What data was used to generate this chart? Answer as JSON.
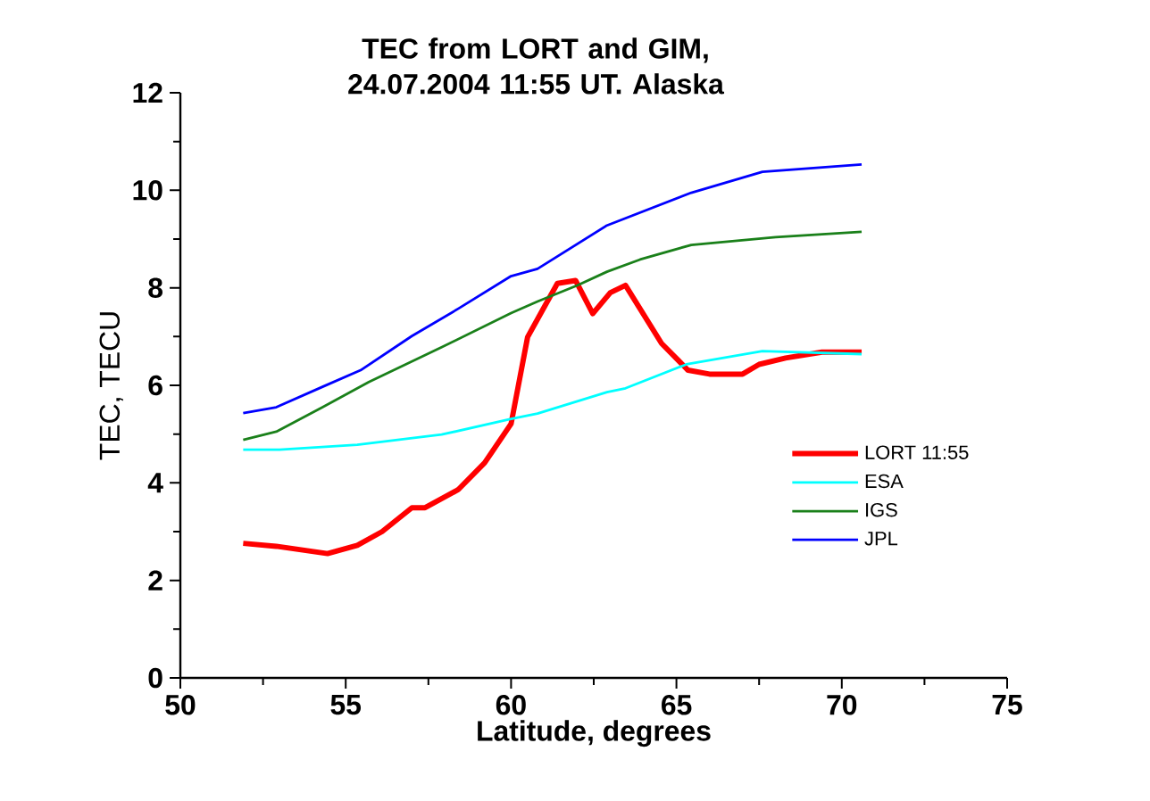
{
  "chart_data": {
    "type": "line",
    "title": "TEC from LORT and GIM, 24.07.2004 11:55 UT. Alaska",
    "xlabel": "Latitude, degrees",
    "ylabel": "TEC, TECU",
    "xlim": [
      50,
      75
    ],
    "xticks": [
      50,
      55,
      60,
      65,
      70,
      75
    ],
    "ylim": [
      0,
      12
    ],
    "yticks": [
      0,
      2,
      4,
      6,
      8,
      10,
      12
    ],
    "legend": "right",
    "series": [
      {
        "name": "LORT 11:55",
        "color": "#ff0000",
        "x": [
          51.9,
          52.9,
          54.45,
          55.35,
          56.1,
          57.0,
          57.4,
          58.4,
          59.2,
          60.0,
          60.5,
          60.95,
          61.4,
          61.95,
          62.47,
          63.0,
          63.46,
          64.55,
          65.35,
          66.0,
          67.0,
          67.5,
          68.3,
          69.4,
          70.6
        ],
        "values": [
          2.76,
          2.7,
          2.55,
          2.72,
          3.0,
          3.49,
          3.49,
          3.86,
          4.41,
          5.21,
          6.99,
          7.54,
          8.09,
          8.15,
          7.47,
          7.9,
          8.05,
          6.86,
          6.31,
          6.23,
          6.23,
          6.43,
          6.56,
          6.68,
          6.68
        ]
      },
      {
        "name": "ESA",
        "color": "#00ffff",
        "x": [
          51.9,
          53.0,
          55.35,
          57.9,
          60.0,
          60.8,
          62.9,
          63.46,
          65.3,
          67.6,
          70.6
        ],
        "values": [
          4.68,
          4.68,
          4.78,
          4.99,
          5.31,
          5.42,
          5.86,
          5.94,
          6.43,
          6.7,
          6.64
        ]
      },
      {
        "name": "IGS",
        "color": "#1a801a",
        "x": [
          51.9,
          52.9,
          54.3,
          55.7,
          57.9,
          60.0,
          60.8,
          62.0,
          62.9,
          63.9,
          65.45,
          68.0,
          70.6
        ],
        "values": [
          4.88,
          5.05,
          5.55,
          6.07,
          6.78,
          7.48,
          7.72,
          8.05,
          8.33,
          8.58,
          8.88,
          9.04,
          9.15
        ]
      },
      {
        "name": "JPL",
        "color": "#0000ff",
        "x": [
          51.9,
          52.9,
          54.3,
          55.45,
          57.0,
          58.4,
          60.0,
          60.8,
          62.9,
          65.45,
          67.6,
          70.6
        ],
        "values": [
          5.43,
          5.55,
          5.97,
          6.31,
          7.01,
          7.57,
          8.24,
          8.39,
          9.28,
          9.95,
          10.38,
          10.53
        ]
      }
    ]
  }
}
